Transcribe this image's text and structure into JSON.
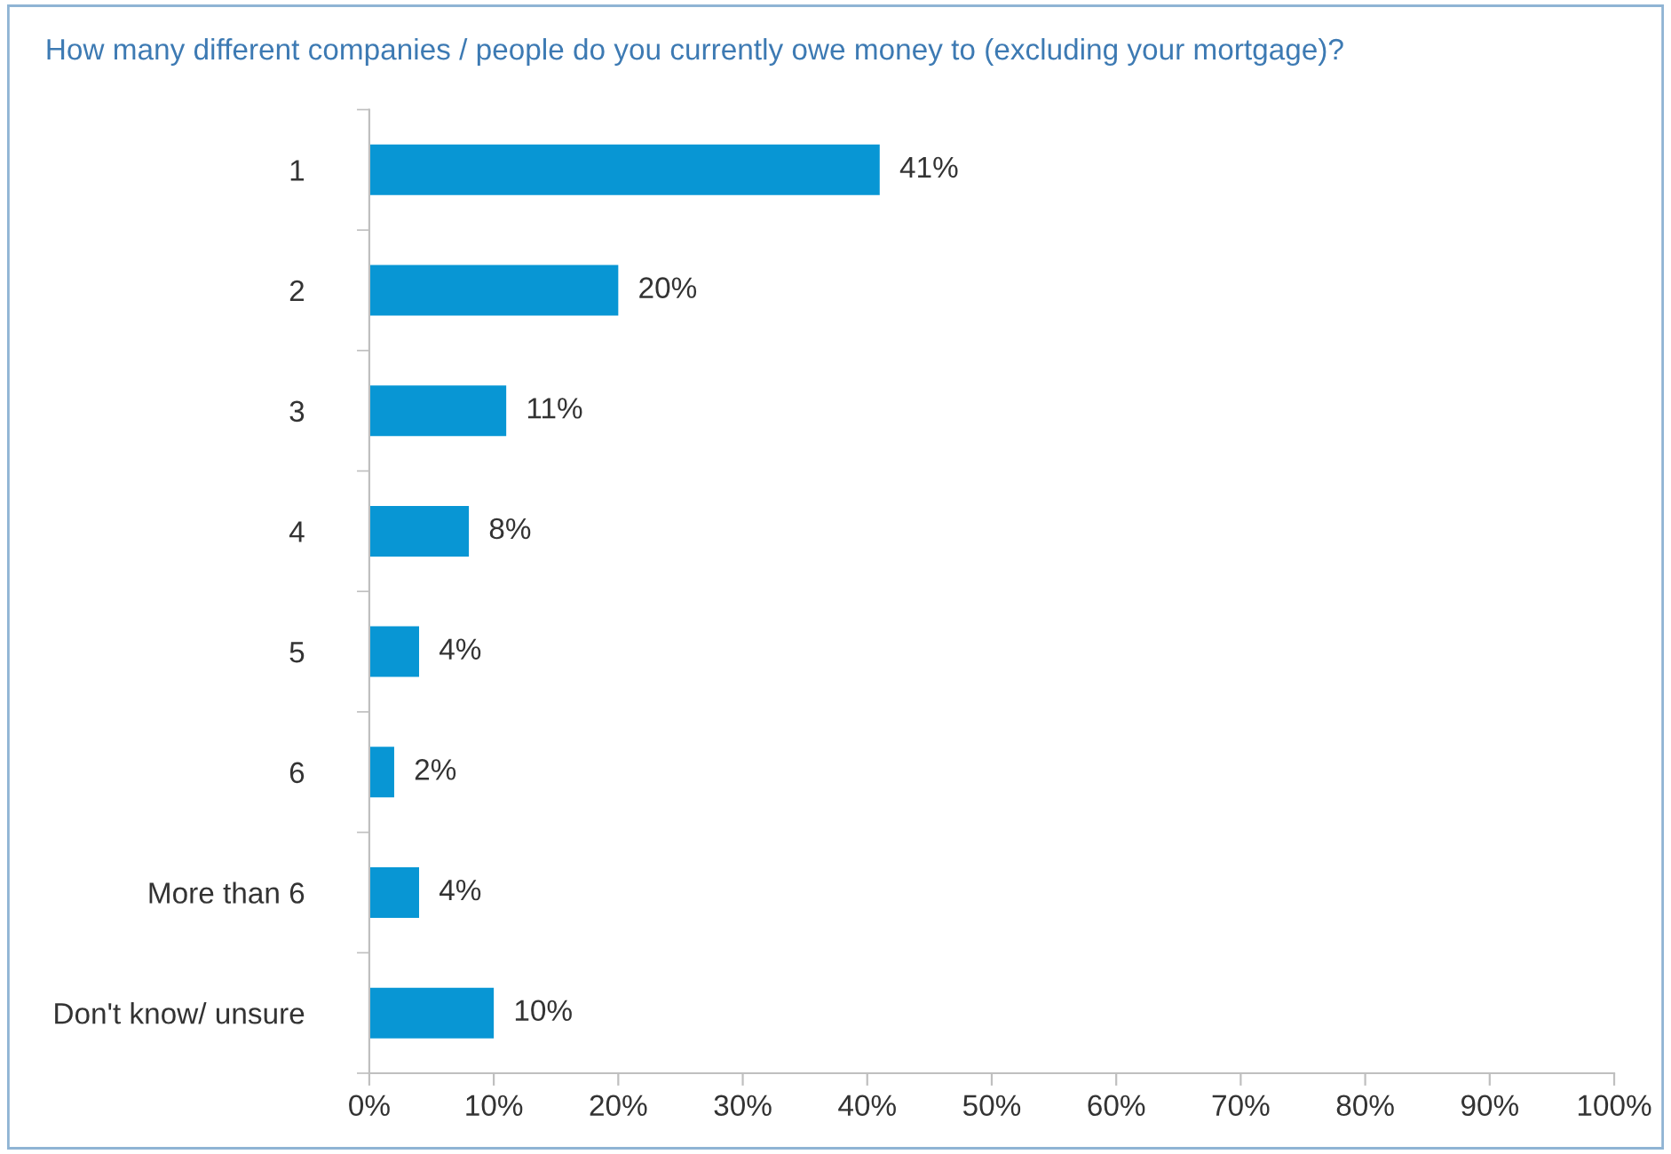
{
  "chart_data": {
    "type": "bar",
    "orientation": "horizontal",
    "title": "How many different companies / people do you currently owe money to (excluding your mortgage)?",
    "categories": [
      "1",
      "2",
      "3",
      "4",
      "5",
      "6",
      "More than 6",
      "Don't know/ unsure"
    ],
    "values": [
      41,
      20,
      11,
      8,
      4,
      2,
      4,
      10
    ],
    "value_labels": [
      "41%",
      "20%",
      "11%",
      "8%",
      "4%",
      "2%",
      "4%",
      "10%"
    ],
    "color": "#0896d4",
    "xlim": [
      0,
      100
    ],
    "xticks": [
      {
        "value": 0,
        "label": "0%"
      },
      {
        "value": 10,
        "label": "10%"
      },
      {
        "value": 20,
        "label": "20%"
      },
      {
        "value": 30,
        "label": "30%"
      },
      {
        "value": 40,
        "label": "40%"
      },
      {
        "value": 50,
        "label": "50%"
      },
      {
        "value": 60,
        "label": "60%"
      },
      {
        "value": 70,
        "label": "70%"
      },
      {
        "value": 80,
        "label": "80%"
      },
      {
        "value": 90,
        "label": "90%"
      },
      {
        "value": 100,
        "label": "100%"
      }
    ],
    "grid": false,
    "legend": false
  }
}
